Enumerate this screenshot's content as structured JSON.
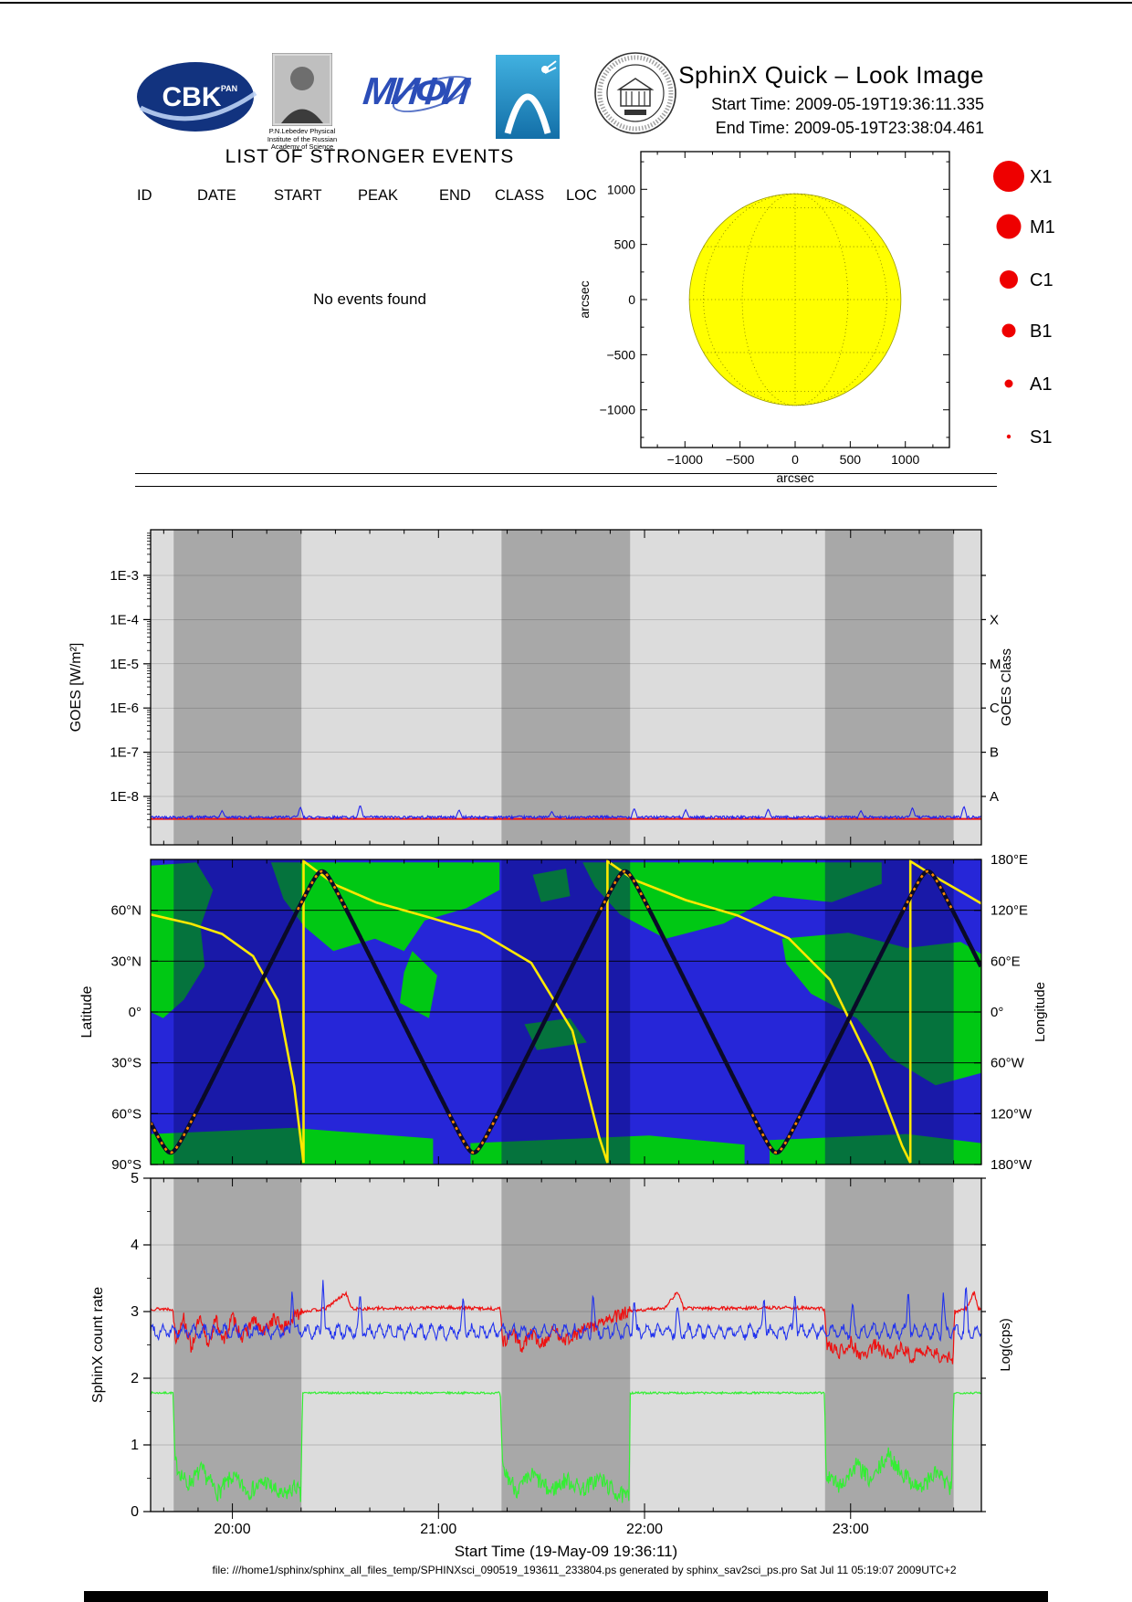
{
  "header": {
    "title": "SphinX Quick – Look Image",
    "start_time": "Start Time: 2009-05-19T19:36:11.335",
    "end_time": "End Time: 2009-05-19T23:38:04.461",
    "logos": {
      "cbk_text": "CBK",
      "cbk_sub": "PAN",
      "lebedev_caption": [
        "P.N.Lebedev Physical",
        "Institute of the Russian",
        "Academy of Science"
      ],
      "mephi_text": "МИФИ"
    }
  },
  "events": {
    "title": "LIST OF STRONGER EVENTS",
    "columns": [
      "ID",
      "DATE",
      "START",
      "PEAK",
      "END",
      "CLASS",
      "LOC"
    ],
    "empty_message": "No events found"
  },
  "sun_plot": {
    "axis_label": "arcsec",
    "tick_values": [
      -1000,
      -500,
      0,
      500,
      1000
    ],
    "axis_range": [
      -1400,
      1400
    ],
    "disk_radius_arcsec": 960,
    "disk_color": "#ffff00",
    "grid_step_deg": 30
  },
  "legend": {
    "color": "#ee0000",
    "items": [
      {
        "label": "X1",
        "radius": 17
      },
      {
        "label": "M1",
        "radius": 13.5
      },
      {
        "label": "C1",
        "radius": 10
      },
      {
        "label": "B1",
        "radius": 7.5
      },
      {
        "label": "A1",
        "radius": 4.5
      },
      {
        "label": "S1",
        "radius": 2.2
      }
    ]
  },
  "time_axis": {
    "start_hour": 19.60315,
    "end_hour": 23.63457,
    "tick_hours": [
      20,
      21,
      22,
      23
    ],
    "tick_labels": [
      "20:00",
      "21:00",
      "22:00",
      "23:00"
    ],
    "minor_step_minutes": 10,
    "title": "Start Time (19-May-09 19:36:11)",
    "night_bands_hours": [
      [
        19.715,
        20.335
      ],
      [
        21.306,
        21.93
      ],
      [
        22.876,
        23.5
      ]
    ]
  },
  "chart_data": [
    {
      "id": "goes",
      "type": "line",
      "ylabel": "GOES [W/m²]",
      "ylabel_right": "GOES Class",
      "yscale": "log",
      "ytick_labels": [
        "1E-3",
        "1E-4",
        "1E-5",
        "1E-6",
        "1E-7",
        "1E-8"
      ],
      "ytick_values": [
        0.001,
        0.0001,
        1e-05,
        1e-06,
        1e-07,
        1e-08
      ],
      "class_labels": [
        [
          "X",
          0.0001
        ],
        [
          "M",
          1e-05
        ],
        [
          "C",
          1e-06
        ],
        [
          "B",
          1e-07
        ],
        [
          "A",
          1e-08
        ]
      ],
      "series": [
        {
          "name": "goes-flux-red",
          "color": "#ee1111",
          "constant": 3.1e-09
        },
        {
          "name": "sphinx-equivalent-blue",
          "color": "#2222ee",
          "base": 3.4e-09,
          "jitter_frac": 0.07,
          "spikes": [
            [
              19.95,
              4.8e-09
            ],
            [
              20.33,
              5.8e-09
            ],
            [
              20.62,
              6.4e-09
            ],
            [
              21.1,
              5e-09
            ],
            [
              21.55,
              4.6e-09
            ],
            [
              21.95,
              5.4e-09
            ],
            [
              22.2,
              5e-09
            ],
            [
              22.6,
              5.2e-09
            ],
            [
              23.05,
              4.8e-09
            ],
            [
              23.3,
              5.6e-09
            ],
            [
              23.55,
              6e-09
            ]
          ]
        }
      ]
    },
    {
      "id": "map",
      "type": "map-track",
      "ylabel": "Latitude",
      "ylabel_right": "Longitude",
      "lat_ticks": [
        [
          "60°N",
          60
        ],
        [
          "30°N",
          30
        ],
        [
          "0°",
          0
        ],
        [
          "30°S",
          -30
        ],
        [
          "60°S",
          -60
        ],
        [
          "90°S",
          -90
        ]
      ],
      "lon_ticks": [
        [
          "180°E",
          180
        ],
        [
          "120°E",
          120
        ],
        [
          "60°E",
          60
        ],
        [
          "0°",
          0
        ],
        [
          "60°W",
          -60
        ],
        [
          "120°W",
          -120
        ],
        [
          "180°W",
          -180
        ]
      ],
      "ocean_color": "#2626d8",
      "land_color": "#00c814",
      "orbit": {
        "period_hours": 1.47,
        "first_south_pass_hour": 19.7,
        "max_latitude_deg": 83,
        "track_color": "#0a0a28",
        "polar_highlight_color": "#ff8800",
        "polar_highlight_above_deg": 60
      },
      "longitude_curve": {
        "color": "#ffe800",
        "points_hour_deg": [
          [
            19.603,
            115
          ],
          [
            19.8,
            104
          ],
          [
            19.95,
            92
          ],
          [
            20.1,
            66
          ],
          [
            20.22,
            14
          ],
          [
            20.3,
            -88
          ],
          [
            20.345,
            -178
          ],
          [
            20.345,
            178
          ],
          [
            20.5,
            150
          ],
          [
            20.7,
            129
          ],
          [
            20.95,
            112
          ],
          [
            21.2,
            94
          ],
          [
            21.45,
            58
          ],
          [
            21.65,
            -22
          ],
          [
            21.78,
            -148
          ],
          [
            21.82,
            -178
          ],
          [
            21.82,
            178
          ],
          [
            21.95,
            156
          ],
          [
            22.2,
            132
          ],
          [
            22.45,
            114
          ],
          [
            22.7,
            87
          ],
          [
            22.9,
            38
          ],
          [
            23.1,
            -62
          ],
          [
            23.25,
            -158
          ],
          [
            23.29,
            -178
          ],
          [
            23.29,
            178
          ],
          [
            23.42,
            158
          ],
          [
            23.55,
            140
          ],
          [
            23.634,
            128
          ]
        ]
      },
      "continents": [
        [
          [
            0,
            0.02
          ],
          [
            0.055,
            0.01
          ],
          [
            0.075,
            0.1
          ],
          [
            0.06,
            0.22
          ],
          [
            0.065,
            0.35
          ],
          [
            0.04,
            0.46
          ],
          [
            0.015,
            0.52
          ],
          [
            0,
            0.5
          ]
        ],
        [
          [
            0.145,
            0.01
          ],
          [
            0.42,
            0.01
          ],
          [
            0.42,
            0.1
          ],
          [
            0.38,
            0.16
          ],
          [
            0.33,
            0.2
          ],
          [
            0.305,
            0.3
          ],
          [
            0.27,
            0.26
          ],
          [
            0.22,
            0.3
          ],
          [
            0.185,
            0.22
          ],
          [
            0.16,
            0.13
          ]
        ],
        [
          [
            0.315,
            0.3
          ],
          [
            0.345,
            0.38
          ],
          [
            0.335,
            0.52
          ],
          [
            0.3,
            0.47
          ],
          [
            0.305,
            0.37
          ]
        ],
        [
          [
            0.52,
            0.01
          ],
          [
            0.88,
            0.01
          ],
          [
            0.88,
            0.08
          ],
          [
            0.82,
            0.14
          ],
          [
            0.75,
            0.12
          ],
          [
            0.69,
            0.21
          ],
          [
            0.62,
            0.26
          ],
          [
            0.565,
            0.18
          ],
          [
            0.535,
            0.09
          ]
        ],
        [
          [
            0.76,
            0.26
          ],
          [
            0.84,
            0.24
          ],
          [
            0.91,
            0.29
          ],
          [
            0.975,
            0.27
          ],
          [
            1,
            0.31
          ],
          [
            1,
            0.7
          ],
          [
            0.945,
            0.74
          ],
          [
            0.89,
            0.65
          ],
          [
            0.85,
            0.52
          ],
          [
            0.795,
            0.44
          ],
          [
            0.765,
            0.34
          ]
        ],
        [
          [
            0,
            0.9
          ],
          [
            0.17,
            0.88
          ],
          [
            0.34,
            0.915
          ],
          [
            0.34,
            1
          ],
          [
            0,
            1
          ]
        ],
        [
          [
            0.385,
            0.93
          ],
          [
            0.6,
            0.905
          ],
          [
            0.715,
            0.935
          ],
          [
            0.715,
            1
          ],
          [
            0.385,
            1
          ]
        ],
        [
          [
            0.745,
            0.92
          ],
          [
            0.91,
            0.9
          ],
          [
            1,
            0.93
          ],
          [
            1,
            1
          ],
          [
            0.745,
            1
          ]
        ],
        [
          [
            0.45,
            0.54
          ],
          [
            0.505,
            0.52
          ],
          [
            0.525,
            0.6
          ],
          [
            0.465,
            0.625
          ]
        ],
        [
          [
            0.46,
            0.05
          ],
          [
            0.5,
            0.03
          ],
          [
            0.505,
            0.12
          ],
          [
            0.47,
            0.14
          ]
        ]
      ]
    },
    {
      "id": "rate",
      "type": "line",
      "ylabel": "SphinX count rate",
      "ylabel_right": "Log(cps)",
      "ylim": [
        0,
        5
      ],
      "ytick_values": [
        0,
        1,
        2,
        3,
        4,
        5
      ],
      "series": [
        {
          "name": "green-detector",
          "color": "#33ee33",
          "jitter_day": 0.015,
          "jitter_night": 0.13,
          "points": [
            [
              19.603,
              1.78
            ],
            [
              19.712,
              1.78
            ],
            [
              19.72,
              0.75
            ],
            [
              19.78,
              0.4
            ],
            [
              19.85,
              0.62
            ],
            [
              19.93,
              0.28
            ],
            [
              20.0,
              0.52
            ],
            [
              20.08,
              0.3
            ],
            [
              20.16,
              0.45
            ],
            [
              20.24,
              0.22
            ],
            [
              20.31,
              0.38
            ],
            [
              20.333,
              0.2
            ],
            [
              20.34,
              1.78
            ],
            [
              20.9,
              1.78
            ],
            [
              21.3,
              1.78
            ],
            [
              21.31,
              0.65
            ],
            [
              21.38,
              0.32
            ],
            [
              21.46,
              0.55
            ],
            [
              21.54,
              0.3
            ],
            [
              21.62,
              0.48
            ],
            [
              21.7,
              0.33
            ],
            [
              21.78,
              0.5
            ],
            [
              21.86,
              0.28
            ],
            [
              21.925,
              0.2
            ],
            [
              21.93,
              1.78
            ],
            [
              22.5,
              1.78
            ],
            [
              22.874,
              1.78
            ],
            [
              22.88,
              0.55
            ],
            [
              22.95,
              0.38
            ],
            [
              23.03,
              0.7
            ],
            [
              23.1,
              0.45
            ],
            [
              23.18,
              0.85
            ],
            [
              23.26,
              0.55
            ],
            [
              23.34,
              0.35
            ],
            [
              23.42,
              0.6
            ],
            [
              23.49,
              0.3
            ],
            [
              23.5,
              1.78
            ],
            [
              23.634,
              1.78
            ]
          ]
        },
        {
          "name": "red-detector",
          "color": "#ee1111",
          "jitter_day": 0.025,
          "jitter_night": 0.1,
          "points": [
            [
              19.603,
              3.04
            ],
            [
              19.71,
              3.04
            ],
            [
              19.725,
              2.55
            ],
            [
              19.76,
              2.95
            ],
            [
              19.8,
              2.45
            ],
            [
              19.84,
              2.9
            ],
            [
              19.88,
              2.5
            ],
            [
              19.92,
              2.88
            ],
            [
              19.96,
              2.55
            ],
            [
              20.0,
              2.92
            ],
            [
              20.05,
              2.6
            ],
            [
              20.1,
              2.88
            ],
            [
              20.15,
              2.68
            ],
            [
              20.2,
              2.9
            ],
            [
              20.25,
              2.75
            ],
            [
              20.3,
              2.92
            ],
            [
              20.334,
              3.0
            ],
            [
              20.45,
              3.04
            ],
            [
              20.55,
              3.28
            ],
            [
              20.58,
              3.04
            ],
            [
              20.8,
              3.05
            ],
            [
              21.05,
              3.06
            ],
            [
              21.3,
              3.04
            ],
            [
              21.315,
              2.52
            ],
            [
              21.36,
              2.72
            ],
            [
              21.4,
              2.45
            ],
            [
              21.45,
              2.68
            ],
            [
              21.5,
              2.5
            ],
            [
              21.56,
              2.72
            ],
            [
              21.62,
              2.58
            ],
            [
              21.7,
              2.72
            ],
            [
              21.78,
              2.82
            ],
            [
              21.86,
              2.92
            ],
            [
              21.928,
              3.0
            ],
            [
              22.1,
              3.06
            ],
            [
              22.16,
              3.3
            ],
            [
              22.19,
              3.05
            ],
            [
              22.45,
              3.05
            ],
            [
              22.7,
              3.06
            ],
            [
              22.873,
              3.04
            ],
            [
              22.885,
              2.5
            ],
            [
              22.94,
              2.38
            ],
            [
              23.0,
              2.55
            ],
            [
              23.05,
              2.32
            ],
            [
              23.12,
              2.5
            ],
            [
              23.18,
              2.36
            ],
            [
              23.24,
              2.45
            ],
            [
              23.3,
              2.32
            ],
            [
              23.38,
              2.42
            ],
            [
              23.46,
              2.28
            ],
            [
              23.497,
              2.3
            ],
            [
              23.505,
              3.0
            ],
            [
              23.56,
              3.04
            ],
            [
              23.6,
              3.3
            ],
            [
              23.62,
              3.04
            ],
            [
              23.634,
              3.04
            ]
          ]
        },
        {
          "name": "blue-detector",
          "color": "#2233ee",
          "base": 2.7,
          "wobble_amp": 0.08,
          "wobble_period_hours": 0.05,
          "jitter": 0.055,
          "spikes": [
            [
              20.29,
              3.35
            ],
            [
              20.44,
              3.5
            ],
            [
              20.62,
              3.3
            ],
            [
              21.12,
              3.25
            ],
            [
              21.75,
              3.3
            ],
            [
              21.95,
              3.2
            ],
            [
              22.16,
              3.1
            ],
            [
              22.58,
              3.25
            ],
            [
              22.73,
              3.3
            ],
            [
              23.01,
              3.15
            ],
            [
              23.28,
              3.35
            ],
            [
              23.45,
              3.3
            ],
            [
              23.56,
              3.45
            ]
          ]
        }
      ]
    }
  ],
  "footer": {
    "text": "file: ///home1/sphinx/sphinx_all_files_temp/SPHINXsci_090519_193611_233804.ps generated by sphinx_sav2sci_ps.pro Sat Jul 11 05:19:07 2009UTC+2"
  }
}
